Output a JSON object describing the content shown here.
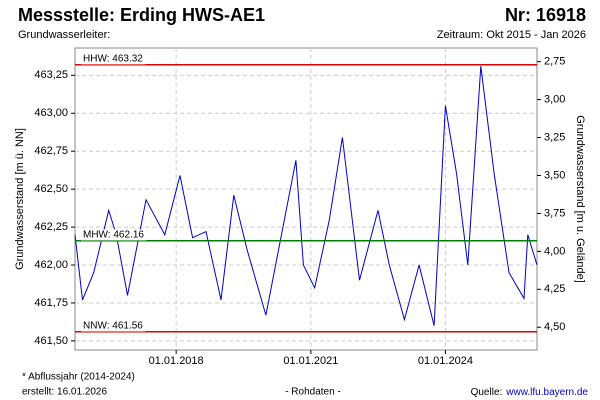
{
  "chart_data": {
    "type": "line",
    "title": "Messstelle: Erding HWS-AE1",
    "number": "Nr: 16918",
    "subtitle": "Grundwasserleiter:",
    "period": "Zeitraum: Okt 2015 - Jan 2026",
    "ylabel": "Grundwasserstand [m ü. NN]",
    "y2label": "Grundwasserstand [m u. Gelände]",
    "footnote": "* Abflussjahr (2014-2024)",
    "created": "erstellt:  16.01.2026",
    "center_note": "- Rohdaten -",
    "source_label": "Quelle:",
    "source_url": "www.lfu.bayern.de",
    "x": [
      "01.10.2015",
      "01.12.2015",
      "01.03.2016",
      "01.07.2016",
      "01.09.2016",
      "01.12.2016",
      "01.05.2017",
      "01.10.2017",
      "01.02.2018",
      "15.05.2018",
      "01.09.2018",
      "01.01.2019",
      "15.04.2019",
      "01.08.2019",
      "01.01.2020",
      "01.09.2020",
      "01.11.2020",
      "01.02.2021",
      "01.06.2021",
      "15.09.2021",
      "01.02.2022",
      "01.07.2022",
      "01.10.2022",
      "01.02.2023",
      "01.06.2023",
      "01.10.2023",
      "01.01.2024",
      "01.04.2024",
      "01.07.2024",
      "15.10.2024",
      "01.02.2025",
      "01.06.2025",
      "01.10.2025",
      "01.11.2025",
      "15.01.2026"
    ],
    "series": [
      {
        "name": "Grundwasserstand",
        "color": "#0000cc",
        "values": [
          462.2,
          461.77,
          461.95,
          462.36,
          462.2,
          461.8,
          462.43,
          462.2,
          462.59,
          462.18,
          462.22,
          461.77,
          462.46,
          462.1,
          461.67,
          462.69,
          462.0,
          461.85,
          462.3,
          462.84,
          461.9,
          462.36,
          462.0,
          461.64,
          462.0,
          461.6,
          463.05,
          462.6,
          462.0,
          463.31,
          462.6,
          461.95,
          461.78,
          462.2,
          462.0
        ]
      }
    ],
    "xlim": [
      "01.10.2015",
      "15.01.2026"
    ],
    "xticks": [
      "01.01.2018",
      "01.01.2021",
      "01.01.2024"
    ],
    "ylim": [
      461.44,
      463.43
    ],
    "yticks": [
      {
        "value": 461.5,
        "label": "461,50"
      },
      {
        "value": 461.75,
        "label": "461,75"
      },
      {
        "value": 462,
        "label": "462,00"
      },
      {
        "value": 462.25,
        "label": "462,25"
      },
      {
        "value": 462.5,
        "label": "462,50"
      },
      {
        "value": 462.75,
        "label": "462,75"
      },
      {
        "value": 463,
        "label": "463,00"
      },
      {
        "value": 463.25,
        "label": "463,25"
      }
    ],
    "y2lim": [
      4.65,
      2.66
    ],
    "y2ticks": [
      {
        "value": 2.75,
        "label": "2,75"
      },
      {
        "value": 3,
        "label": "3,00"
      },
      {
        "value": 3.25,
        "label": "3,25"
      },
      {
        "value": 3.5,
        "label": "3,50"
      },
      {
        "value": 3.75,
        "label": "3,75"
      },
      {
        "value": 4,
        "label": "4,00"
      },
      {
        "value": 4.25,
        "label": "4,25"
      },
      {
        "value": 4.5,
        "label": "4,50"
      }
    ],
    "grid": true,
    "reference_lines": [
      {
        "label": "HHW: 463.32",
        "value": 463.32,
        "color": "#e00000"
      },
      {
        "label": "MHW: 462.16",
        "value": 462.16,
        "color": "#008000"
      },
      {
        "label": "NNW: 461.56",
        "value": 461.56,
        "color": "#e00000"
      }
    ]
  }
}
